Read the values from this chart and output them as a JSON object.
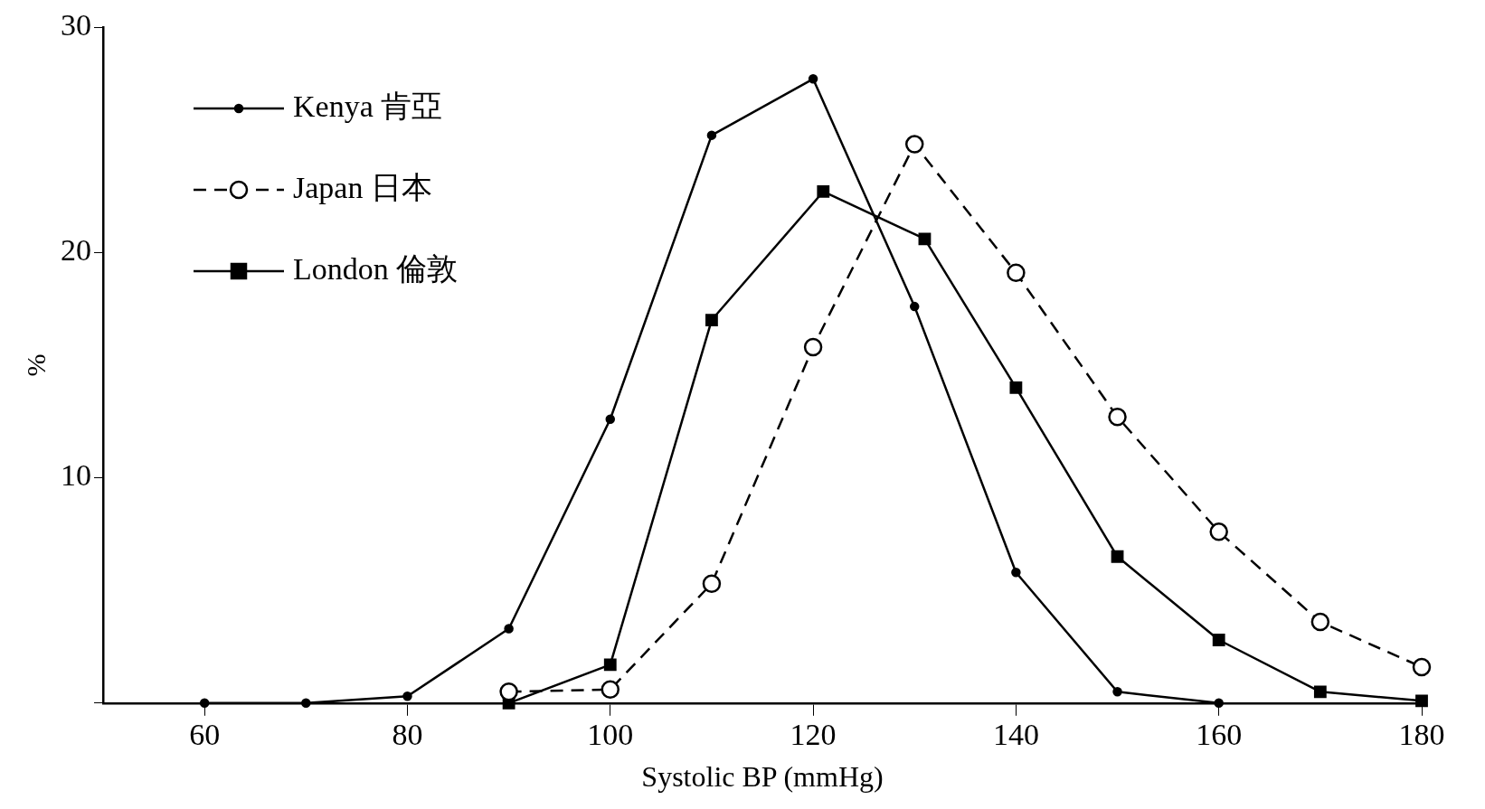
{
  "chart_data": {
    "type": "line",
    "xlabel": "Systolic BP (mmHg)",
    "ylabel": "%",
    "xlim": [
      50,
      180
    ],
    "xticks": [
      60,
      80,
      100,
      120,
      140,
      160,
      180
    ],
    "ylim": [
      0,
      30
    ],
    "yticks": [
      {
        "value": 0,
        "label": null
      },
      10,
      20,
      30
    ],
    "grid": false,
    "legend": "top left",
    "series": [
      {
        "name": "Kenya 肯亞",
        "color": "#000000",
        "marker": "circle",
        "line_style": "solid",
        "x": [
          60,
          70,
          80,
          90,
          100,
          110,
          120,
          130,
          140,
          150,
          160
        ],
        "values": [
          0,
          0,
          0.3,
          3.3,
          12.6,
          25.2,
          27.7,
          17.6,
          5.8,
          0.5,
          0
        ]
      },
      {
        "name": "Japan 日本",
        "color": "#000000",
        "marker": "circle",
        "line_style": "dashed",
        "x": [
          90,
          100,
          110,
          120,
          130,
          140,
          150,
          160,
          170,
          180
        ],
        "values": [
          0.5,
          0.6,
          5.3,
          15.8,
          24.8,
          19.1,
          12.7,
          7.6,
          3.6,
          1.6
        ]
      },
      {
        "name": "London 倫敦",
        "color": "#000000",
        "marker": "square",
        "line_style": "solid",
        "x": [
          90,
          100,
          110,
          121,
          131,
          140,
          150,
          160,
          170,
          180
        ],
        "values": [
          0,
          1.7,
          17,
          22.7,
          20.6,
          14,
          6.5,
          2.8,
          0.5,
          0.1
        ]
      }
    ]
  }
}
